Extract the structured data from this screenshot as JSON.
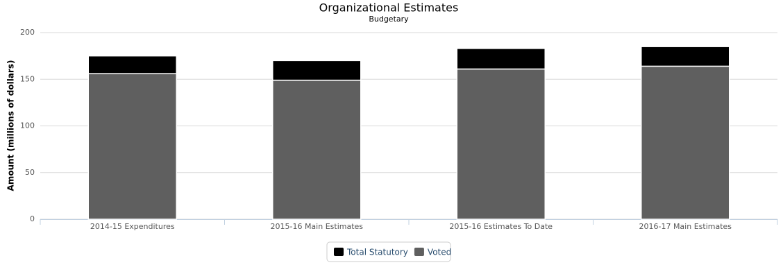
{
  "chart_data": {
    "type": "stacked-bar",
    "title": "Organizational Estimates",
    "subtitle": "Budgetary",
    "y_label": "Amount (millions of dollars)",
    "categories": [
      "2014-15 Expenditures",
      "2015-16 Main Estimates",
      "2015-16 Estimates To Date",
      "2016-17 Main Estimates"
    ],
    "series": [
      {
        "name": "Total Statutory",
        "color": "#000000",
        "values": [
          19,
          21,
          22,
          21
        ]
      },
      {
        "name": "Voted",
        "color": "#5f5f5f",
        "values": [
          156,
          149,
          161,
          164
        ]
      }
    ],
    "ylim": [
      0,
      200
    ],
    "yticks": [
      0,
      50,
      100,
      150,
      200
    ],
    "grid": true,
    "legend": "bottom"
  }
}
